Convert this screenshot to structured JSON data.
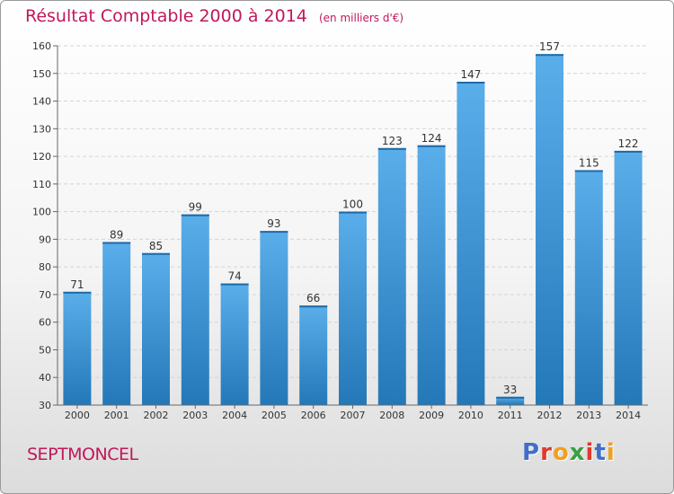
{
  "header": {
    "title": "Résultat Comptable 2000 à 2014",
    "subtitle": "(en milliers d'€)"
  },
  "footer": {
    "commune": "SEPTMONCEL",
    "brand": "Proxiti"
  },
  "colors": {
    "title": "#c0185a",
    "bar_light": "#5aaeea",
    "bar_dark": "#2478b8",
    "brand_letters": [
      "#3f6fc8",
      "#e03a2a",
      "#f0a020",
      "#3aa040",
      "#e03a2a",
      "#3f6fc8",
      "#f0a020"
    ]
  },
  "chart_data": {
    "type": "bar",
    "title": "Résultat Comptable 2000 à 2014",
    "subtitle": "(en milliers d'€)",
    "categories": [
      "2000",
      "2001",
      "2002",
      "2003",
      "2004",
      "2005",
      "2006",
      "2007",
      "2008",
      "2009",
      "2010",
      "2011",
      "2012",
      "2013",
      "2014"
    ],
    "values": [
      71,
      89,
      85,
      99,
      74,
      93,
      66,
      100,
      123,
      124,
      147,
      33,
      157,
      115,
      122
    ],
    "ylim": [
      30,
      160
    ],
    "yticks": [
      30,
      40,
      50,
      60,
      70,
      80,
      90,
      100,
      110,
      120,
      130,
      140,
      150,
      160
    ],
    "grid": true,
    "data_labels": true
  }
}
